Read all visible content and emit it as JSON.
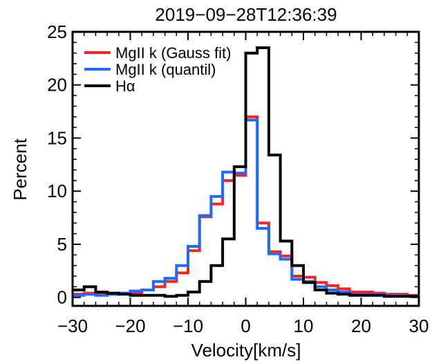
{
  "chart_data": {
    "type": "line",
    "title": "2019−09−28T12:36:39",
    "xlabel": "Velocity[km/s]",
    "ylabel": "Percent",
    "xlim": [
      -30,
      30
    ],
    "ylim": [
      -0.8,
      25
    ],
    "xticks": [
      -30,
      -20,
      -10,
      0,
      10,
      20,
      30
    ],
    "xtick_labels": [
      "−30",
      "−20",
      "−10",
      "0",
      "10",
      "20",
      "30"
    ],
    "yticks": [
      0,
      5,
      10,
      15,
      20,
      25
    ],
    "ytick_labels": [
      "0",
      "5",
      "10",
      "15",
      "20",
      "25"
    ],
    "bin_edges": [
      -30,
      -28,
      -26,
      -24,
      -22,
      -20,
      -18,
      -16,
      -14,
      -12,
      -10,
      -8,
      -6,
      -4,
      -2,
      0,
      2,
      4,
      6,
      8,
      10,
      12,
      14,
      16,
      18,
      20,
      22,
      24,
      26,
      28,
      30
    ],
    "legend_position": "top-left",
    "series": [
      {
        "name": "MgII k (Gauss fit)",
        "color": "#ff2020",
        "values": [
          0.3,
          0.4,
          0.3,
          0.3,
          0.4,
          0.4,
          0.7,
          1.0,
          1.5,
          2.3,
          4.4,
          7.6,
          8.8,
          11.0,
          11.5,
          17.0,
          7.0,
          4.3,
          3.9,
          2.0,
          1.9,
          1.4,
          1.1,
          0.8,
          0.5,
          0.5,
          0.4,
          0.3,
          0.3,
          0.2
        ]
      },
      {
        "name": "MgII k (quantil)",
        "color": "#1c6cff",
        "values": [
          0.2,
          0.3,
          0.2,
          0.3,
          0.4,
          0.6,
          0.7,
          1.5,
          1.8,
          3.0,
          4.8,
          7.7,
          9.5,
          11.8,
          11.7,
          16.7,
          6.5,
          4.1,
          3.6,
          1.7,
          1.5,
          1.0,
          0.7,
          0.5,
          0.3,
          0.3,
          0.3,
          0.2,
          0.2,
          0.1
        ]
      },
      {
        "name": "Hα",
        "color": "#000000",
        "values": [
          0.7,
          1.0,
          0.5,
          0.4,
          0.3,
          0.2,
          0.2,
          0.2,
          0.1,
          0.2,
          0.5,
          1.5,
          3.0,
          5.5,
          12.3,
          23.0,
          23.5,
          13.4,
          5.3,
          3.0,
          1.4,
          0.7,
          0.4,
          0.3,
          0.2,
          0.2,
          0.2,
          0.1,
          0.1,
          0.1
        ]
      }
    ]
  }
}
